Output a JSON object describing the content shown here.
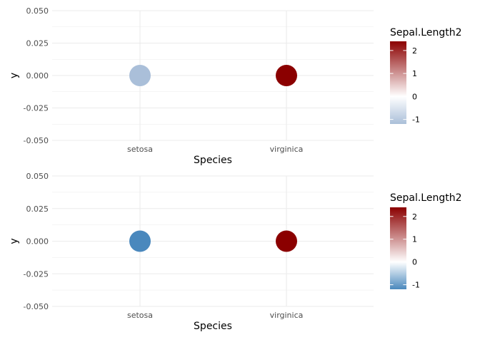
{
  "chart_data": [
    {
      "type": "scatter",
      "title": "",
      "xlabel": "Species",
      "ylabel": "y",
      "categories": [
        "setosa",
        "virginica"
      ],
      "ylim": [
        -0.05,
        0.05
      ],
      "yticks": [
        "0.050",
        "0.025",
        "0.000",
        "-0.025",
        "-0.050"
      ],
      "ytick_values": [
        0.05,
        0.025,
        0,
        -0.025,
        -0.05
      ],
      "grid": true,
      "points": [
        {
          "x": "setosa",
          "y": 0,
          "color_value": -1.2,
          "color": "#aabfd9"
        },
        {
          "x": "virginica",
          "y": 0,
          "color_value": 2.4,
          "color": "#8b0000"
        }
      ],
      "legend": {
        "title": "Sepal.Length2",
        "placement": "right",
        "range": [
          -1.2,
          2.4
        ],
        "ticks": [
          "2",
          "1",
          "0",
          "-1"
        ],
        "tick_values": [
          2,
          1,
          0,
          -1
        ],
        "low_color": "#aabfd9",
        "mid_color": "#ffffff",
        "high_color": "#8b0000"
      }
    },
    {
      "type": "scatter",
      "title": "",
      "xlabel": "Species",
      "ylabel": "y",
      "categories": [
        "setosa",
        "virginica"
      ],
      "ylim": [
        -0.05,
        0.05
      ],
      "yticks": [
        "0.050",
        "0.025",
        "0.000",
        "-0.025",
        "-0.050"
      ],
      "ytick_values": [
        0.05,
        0.025,
        0,
        -0.025,
        -0.05
      ],
      "grid": true,
      "points": [
        {
          "x": "setosa",
          "y": 0,
          "color_value": -1.2,
          "color": "#4a88bd"
        },
        {
          "x": "virginica",
          "y": 0,
          "color_value": 2.4,
          "color": "#8b0000"
        }
      ],
      "legend": {
        "title": "Sepal.Length2",
        "placement": "right",
        "range": [
          -1.2,
          2.4
        ],
        "ticks": [
          "2",
          "1",
          "0",
          "-1"
        ],
        "tick_values": [
          2,
          1,
          0,
          -1
        ],
        "low_color": "#4a88bd",
        "mid_color": "#ffffff",
        "high_color": "#8b0000"
      }
    }
  ]
}
